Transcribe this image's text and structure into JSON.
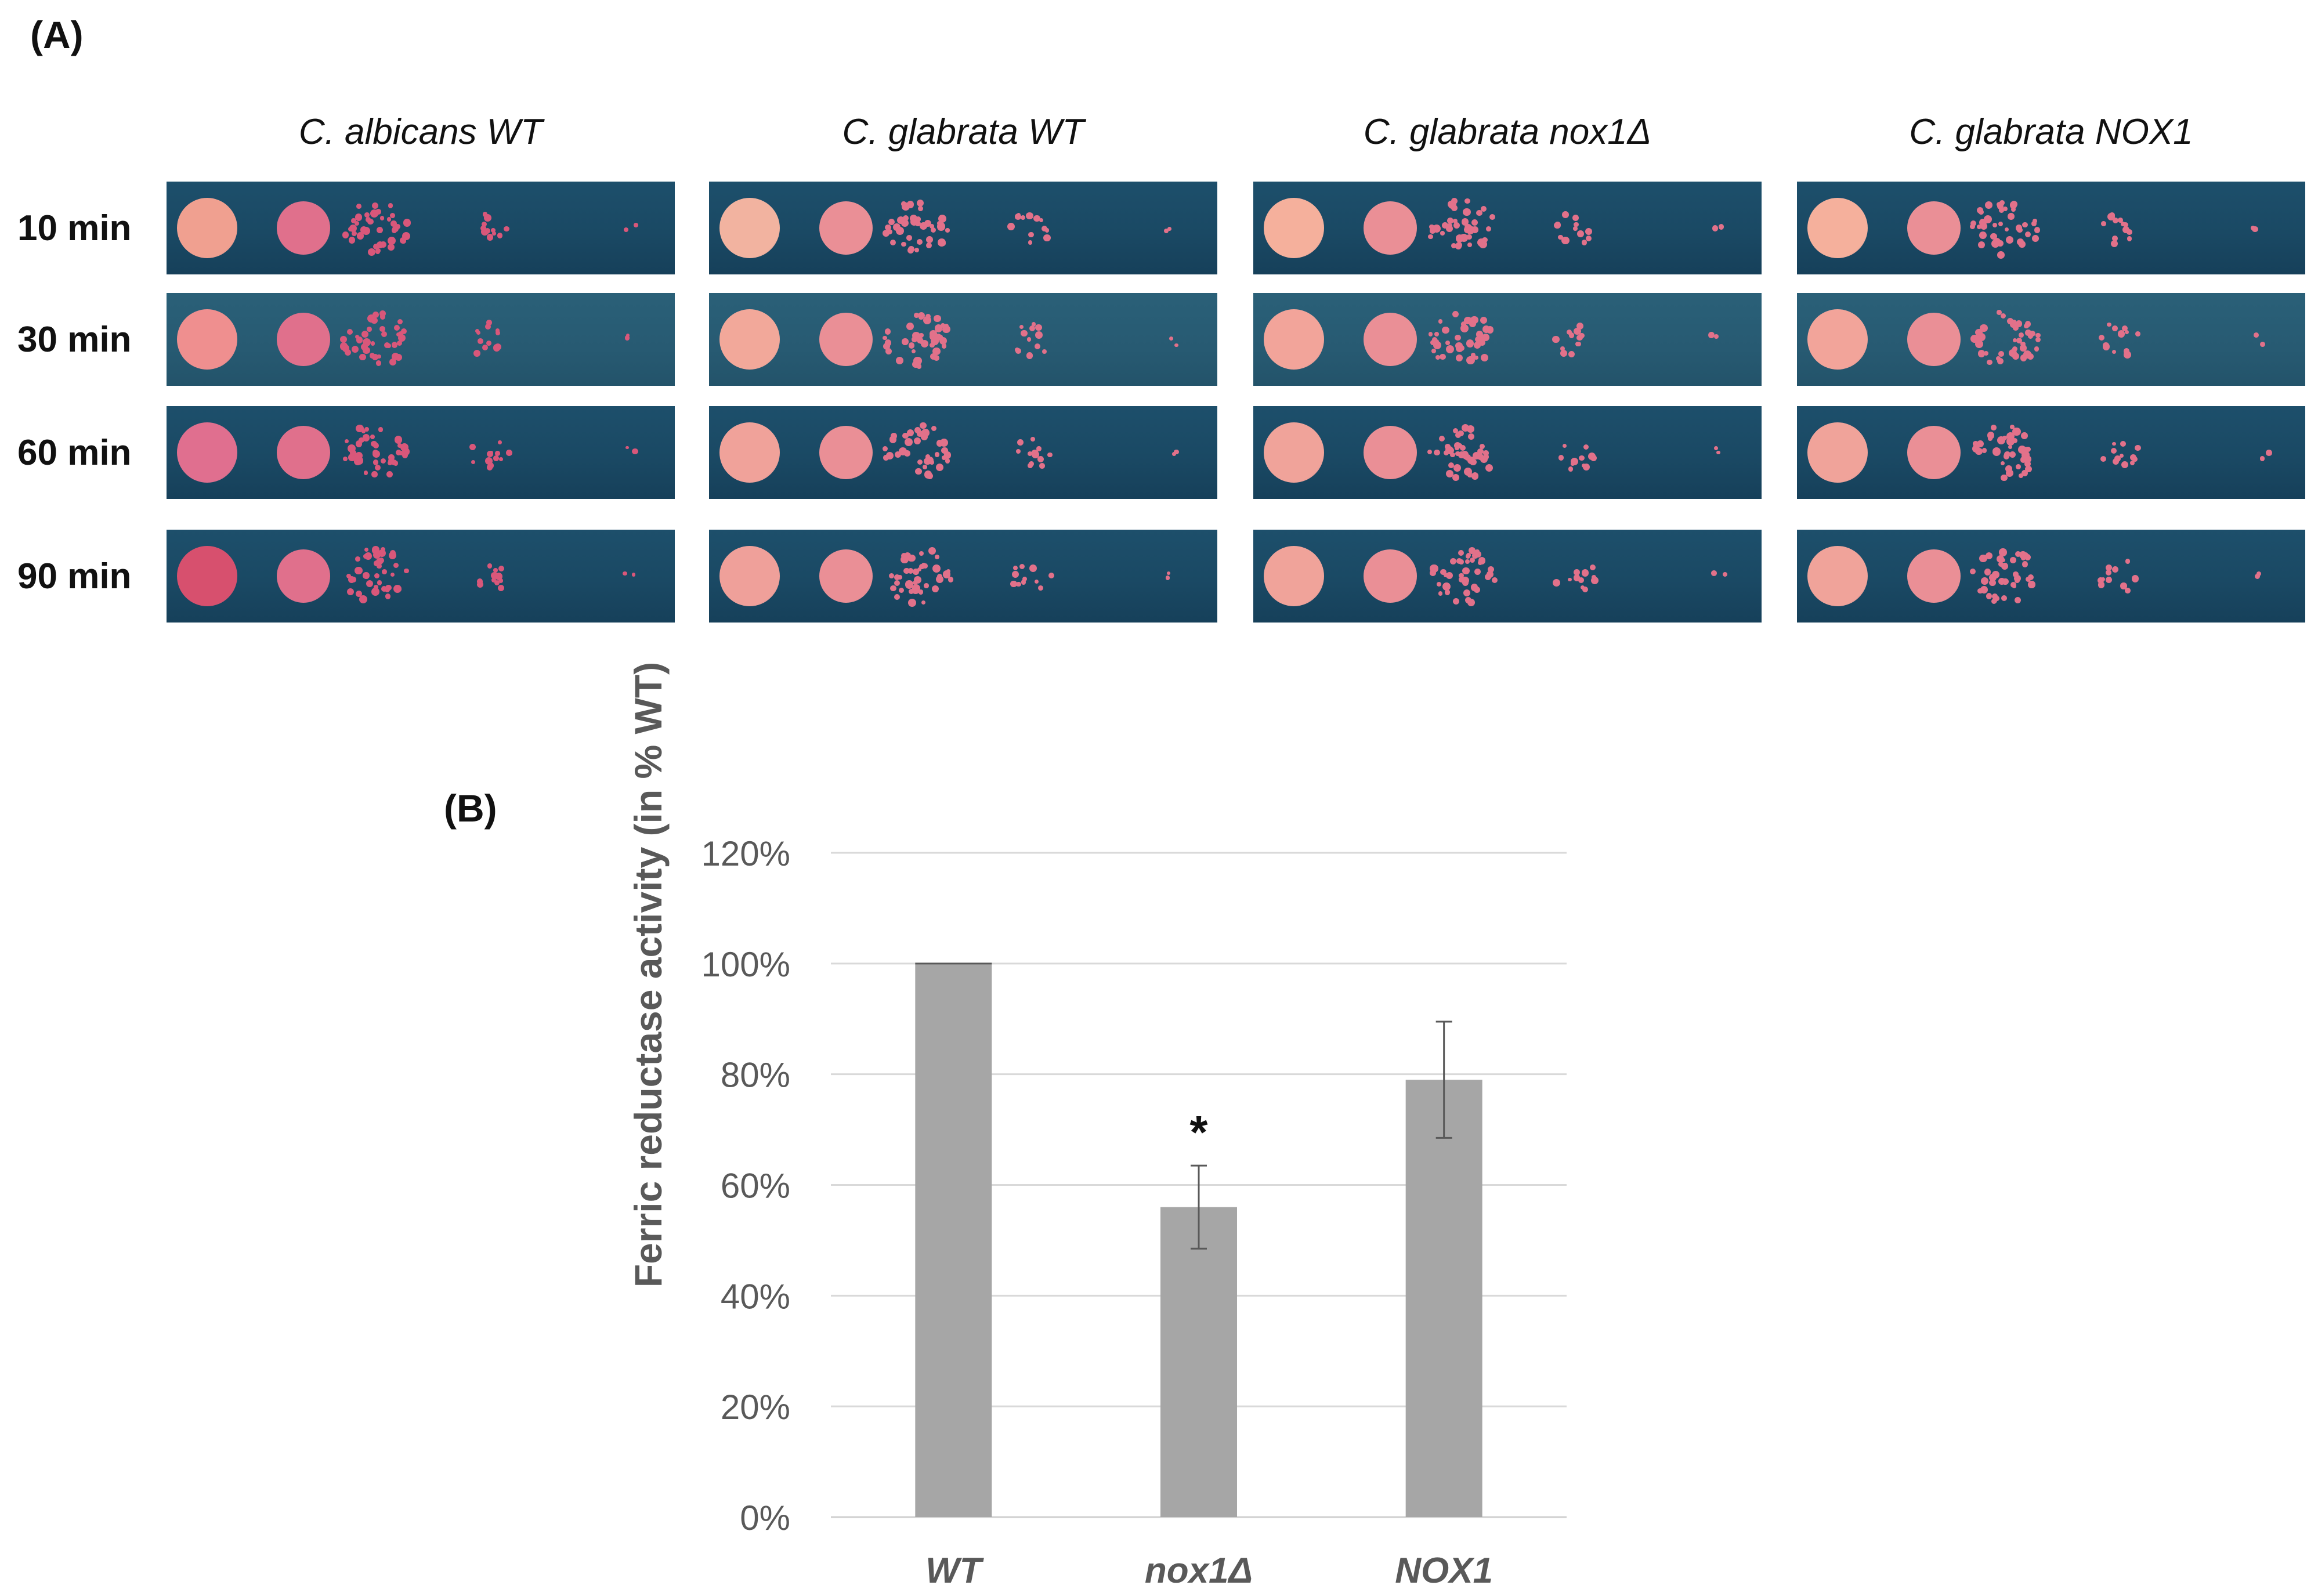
{
  "panel_a": {
    "label": "(A)",
    "strains": [
      "C. albicans WT",
      "C. glabrata WT",
      "C. glabrata nox1Δ",
      "C. glabrata NOX1"
    ],
    "timepoints": [
      "10 min",
      "30 min",
      "60 min",
      "90 min"
    ],
    "plate_color": "#1b4b66",
    "colony_color": "#e8788c"
  },
  "panel_b": {
    "label": "(B)"
  },
  "chart_data": {
    "type": "bar",
    "title": "",
    "xlabel": "",
    "ylabel": "Ferric reductase activity (in % WT)",
    "categories": [
      "WT",
      "nox1Δ",
      "NOX1"
    ],
    "values": [
      100,
      56,
      79
    ],
    "error": [
      0,
      7.5,
      10.5
    ],
    "annotations": [
      {
        "category": "nox1Δ",
        "text": "*"
      }
    ],
    "ylim": [
      0,
      120
    ],
    "yticks": [
      0,
      20,
      40,
      60,
      80,
      100,
      120
    ],
    "ytick_labels": [
      "0%",
      "20%",
      "40%",
      "60%",
      "80%",
      "100%",
      "120%"
    ],
    "grid": true,
    "bar_color": "#a6a6a6"
  }
}
